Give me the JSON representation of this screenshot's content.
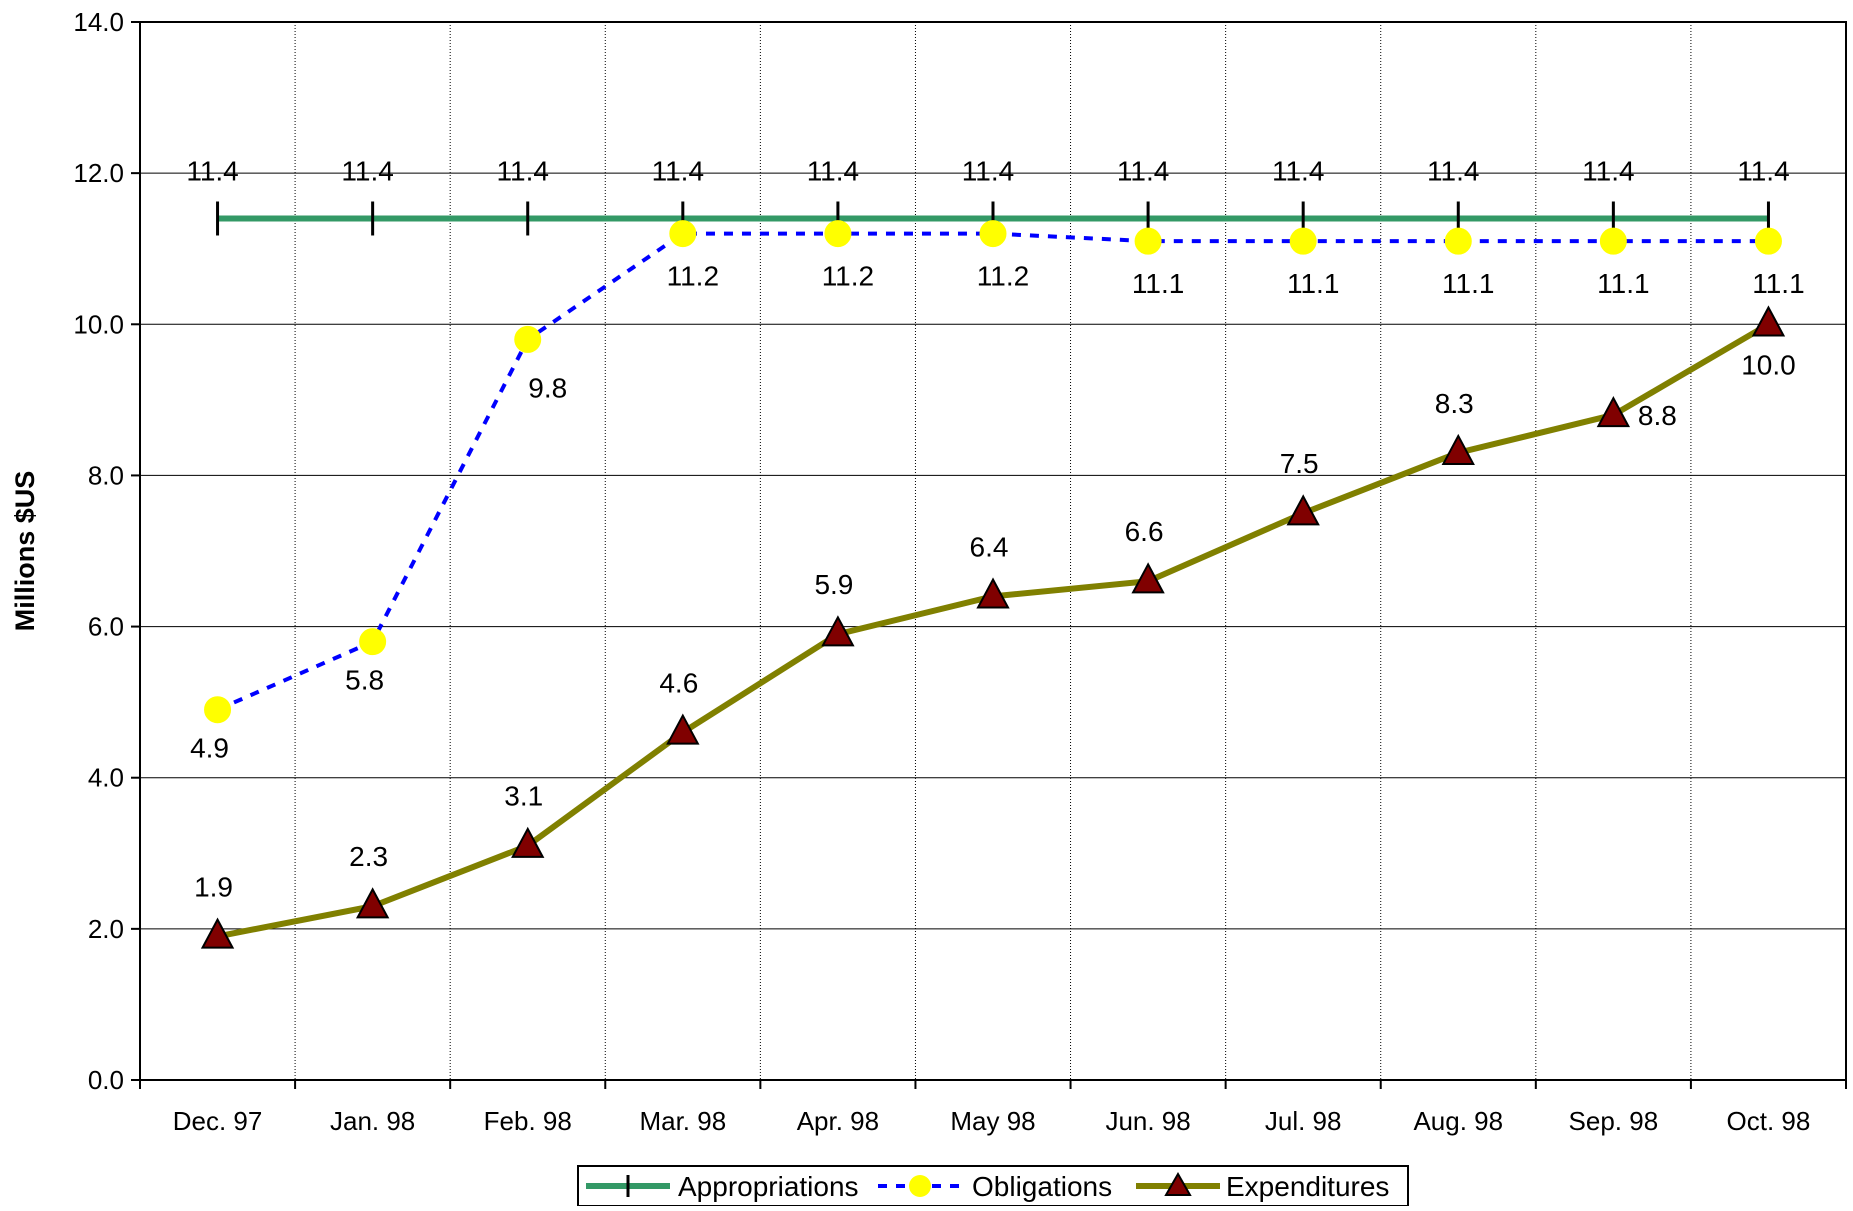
{
  "chart_data": {
    "type": "line",
    "ylabel": "Millions $US",
    "xlabel": "",
    "title": "",
    "ylim": [
      0,
      14
    ],
    "yticks": [
      0,
      2,
      4,
      6,
      8,
      10,
      12,
      14
    ],
    "ytick_labels": [
      "0.0",
      "2.0",
      "4.0",
      "6.0",
      "8.0",
      "10.0",
      "12.0",
      "14.0"
    ],
    "grid": true,
    "legend_position": "bottom",
    "categories": [
      "Dec. 97",
      "Jan. 98",
      "Feb. 98",
      "Mar. 98",
      "Apr. 98",
      "May 98",
      "Jun. 98",
      "Jul. 98",
      "Aug. 98",
      "Sep. 98",
      "Oct. 98"
    ],
    "series": [
      {
        "name": "Appropriations",
        "values": [
          11.4,
          11.4,
          11.4,
          11.4,
          11.4,
          11.4,
          11.4,
          11.4,
          11.4,
          11.4,
          11.4
        ],
        "labels": [
          "11.4",
          "11.4",
          "11.4",
          "11.4",
          "11.4",
          "11.4",
          "11.4",
          "11.4",
          "11.4",
          "11.4",
          "11.4"
        ],
        "color": "#339966",
        "marker": "vertical-bar",
        "line_style": "solid"
      },
      {
        "name": "Obligations",
        "values": [
          4.9,
          5.8,
          9.8,
          11.2,
          11.2,
          11.2,
          11.1,
          11.1,
          11.1,
          11.1,
          11.1
        ],
        "labels": [
          "4.9",
          "5.8",
          "9.8",
          "11.2",
          "11.2",
          "11.2",
          "11.1",
          "11.1",
          "11.1",
          "11.1",
          "11.1"
        ],
        "color": "#0000FF",
        "marker_color": "#FFFF00",
        "marker": "circle",
        "line_style": "dashed"
      },
      {
        "name": "Expenditures",
        "values": [
          1.9,
          2.3,
          3.1,
          4.6,
          5.9,
          6.4,
          6.6,
          7.5,
          8.3,
          8.8,
          10.0
        ],
        "labels": [
          "1.9",
          "2.3",
          "3.1",
          "4.6",
          "5.9",
          "6.4",
          "6.6",
          "7.5",
          "8.3",
          "8.8",
          "10.0"
        ],
        "color": "#808000",
        "marker_color": "#800000",
        "marker": "triangle",
        "line_style": "solid"
      }
    ]
  }
}
